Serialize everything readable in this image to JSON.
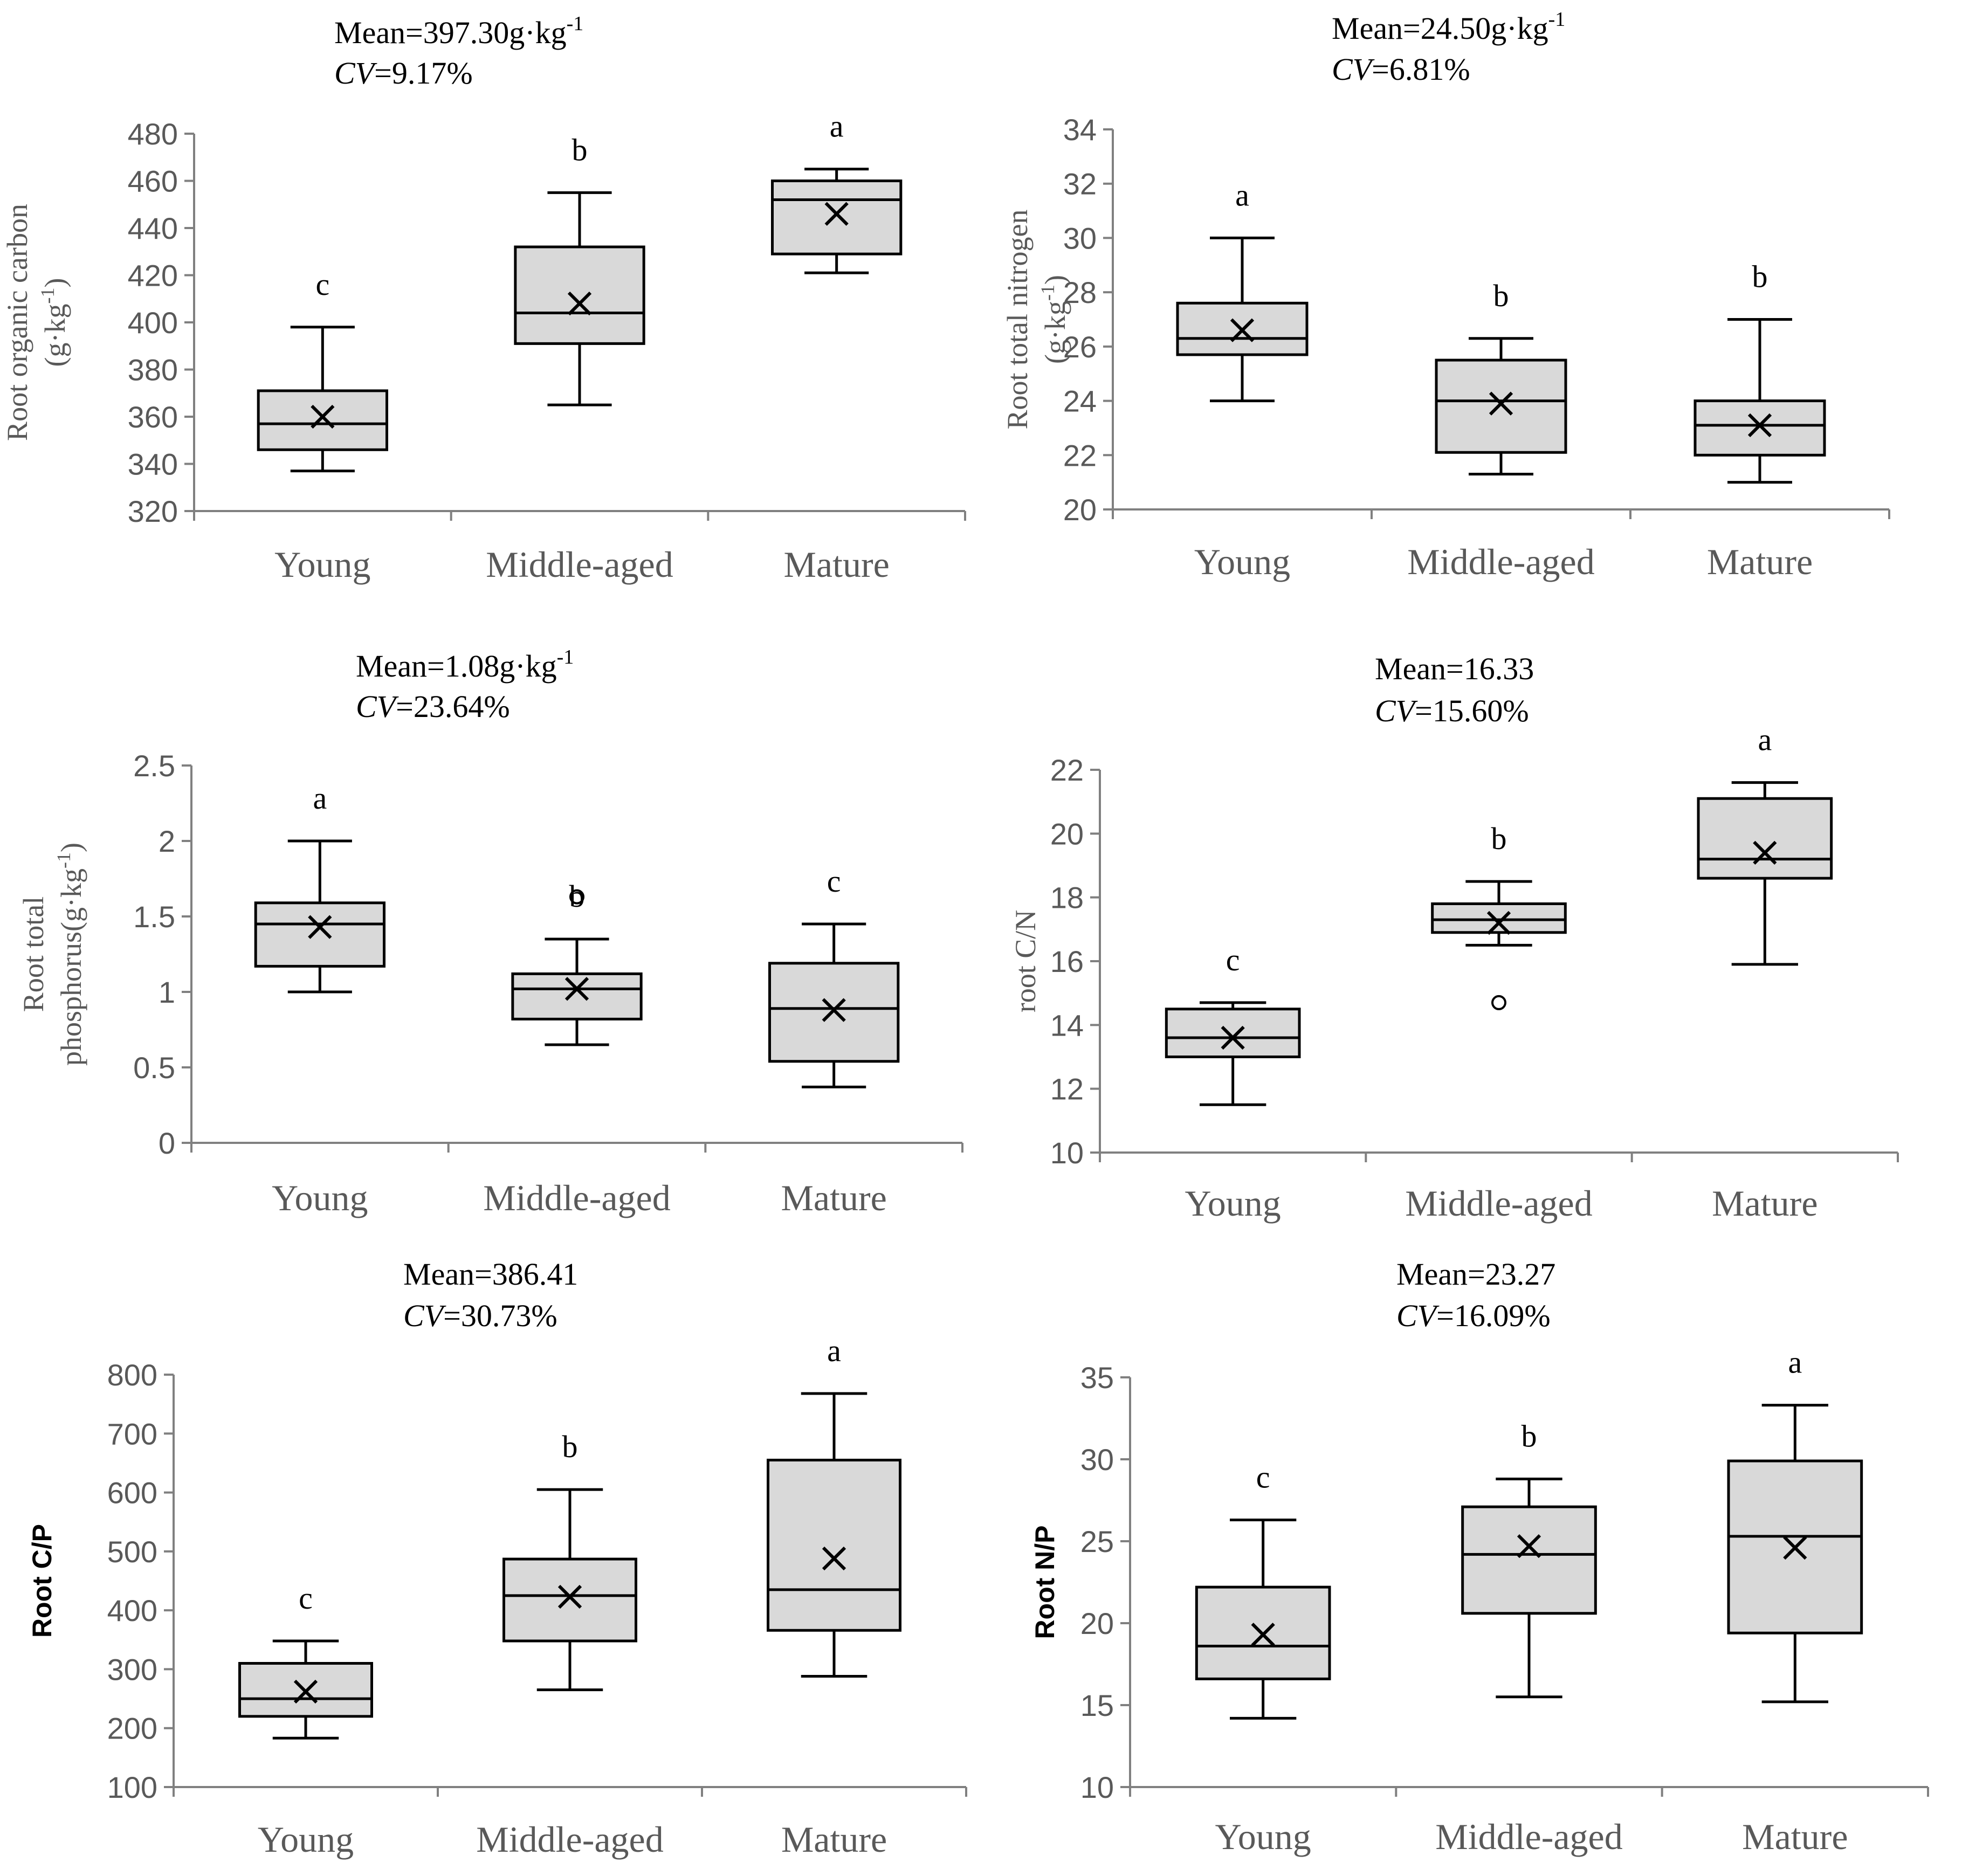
{
  "chart_data": [
    {
      "type": "boxplot",
      "stat_mean": "Mean=397.30g·kg",
      "stat_mean_sup": "-1",
      "stat_cv_label": "CV",
      "stat_cv_value": "=9.17%",
      "ylabel_line1": "Root organic  carbon",
      "ylabel_line2": "(g·kg",
      "ylabel_line2_sup": "-1",
      "ylabel_line2_end": ")",
      "ylim": [
        320,
        480
      ],
      "yticks": [
        320,
        340,
        360,
        380,
        400,
        420,
        440,
        460,
        480
      ],
      "categories": [
        "Young",
        "Middle-aged",
        "Mature"
      ],
      "boxes": [
        {
          "min": 337,
          "q1": 346,
          "median": 357,
          "q3": 371,
          "max": 398,
          "mean": 360,
          "sig": "c",
          "outliers": []
        },
        {
          "min": 365,
          "q1": 391,
          "median": 404,
          "q3": 432,
          "max": 455,
          "mean": 408,
          "sig": "b",
          "outliers": []
        },
        {
          "min": 421,
          "q1": 429,
          "median": 452,
          "q3": 460,
          "max": 465,
          "mean": 446,
          "sig": "a",
          "outliers": []
        }
      ]
    },
    {
      "type": "boxplot",
      "stat_mean": "Mean=24.50g·kg",
      "stat_mean_sup": "-1",
      "stat_cv_label": "CV",
      "stat_cv_value": "=6.81%",
      "ylabel_line1": "Root total nitrogen",
      "ylabel_line2": "(g·kg",
      "ylabel_line2_sup": "-1",
      "ylabel_line2_end": ")",
      "ylim": [
        20,
        34
      ],
      "yticks": [
        20,
        22,
        24,
        26,
        28,
        30,
        32,
        34
      ],
      "categories": [
        "Young",
        "Middle-aged",
        "Mature"
      ],
      "boxes": [
        {
          "min": 24.0,
          "q1": 25.7,
          "median": 26.3,
          "q3": 27.6,
          "max": 30.0,
          "mean": 26.6,
          "sig": "a",
          "outliers": []
        },
        {
          "min": 21.3,
          "q1": 22.1,
          "median": 24.0,
          "q3": 25.5,
          "max": 26.3,
          "mean": 23.9,
          "sig": "b",
          "outliers": []
        },
        {
          "min": 21.0,
          "q1": 22.0,
          "median": 23.1,
          "q3": 24.0,
          "max": 27.0,
          "mean": 23.1,
          "sig": "b",
          "outliers": []
        }
      ]
    },
    {
      "type": "boxplot",
      "stat_mean": "Mean=1.08g·kg",
      "stat_mean_sup": "-1",
      "stat_cv_label": "CV",
      "stat_cv_value": "=23.64%",
      "ylabel_line1": "Root total",
      "ylabel_line2": "phosphorus(g·kg",
      "ylabel_line2_sup": "-1",
      "ylabel_line2_end": ")",
      "ylim": [
        0,
        2.5
      ],
      "yticks": [
        0,
        0.5,
        1,
        1.5,
        2,
        2.5
      ],
      "categories": [
        "Young",
        "Middle-aged",
        "Mature"
      ],
      "boxes": [
        {
          "min": 1.0,
          "q1": 1.17,
          "median": 1.45,
          "q3": 1.59,
          "max": 2.0,
          "mean": 1.43,
          "sig": "a",
          "outliers": []
        },
        {
          "min": 0.65,
          "q1": 0.82,
          "median": 1.02,
          "q3": 1.12,
          "max": 1.35,
          "mean": 1.02,
          "sig": "b",
          "outliers": [
            1.63
          ]
        },
        {
          "min": 0.37,
          "q1": 0.54,
          "median": 0.89,
          "q3": 1.19,
          "max": 1.45,
          "mean": 0.88,
          "sig": "c",
          "outliers": []
        }
      ]
    },
    {
      "type": "boxplot",
      "stat_mean": "Mean=16.33",
      "stat_mean_sup": "",
      "stat_cv_label": "CV",
      "stat_cv_value": "=15.60%",
      "ylabel_line1": "root C/N",
      "ylabel_line2": "",
      "ylabel_line2_sup": "",
      "ylabel_line2_end": "",
      "ylim": [
        10,
        22
      ],
      "yticks": [
        10,
        12,
        14,
        16,
        18,
        20,
        22
      ],
      "categories": [
        "Young",
        "Middle-aged",
        "Mature"
      ],
      "boxes": [
        {
          "min": 11.5,
          "q1": 13.0,
          "median": 13.6,
          "q3": 14.5,
          "max": 14.7,
          "mean": 13.6,
          "sig": "c",
          "outliers": []
        },
        {
          "min": 16.5,
          "q1": 16.9,
          "median": 17.3,
          "q3": 17.8,
          "max": 18.5,
          "mean": 17.2,
          "sig": "b",
          "outliers": [
            14.7
          ]
        },
        {
          "min": 15.9,
          "q1": 18.6,
          "median": 19.2,
          "q3": 21.1,
          "max": 21.6,
          "mean": 19.4,
          "sig": "a",
          "outliers": []
        }
      ]
    },
    {
      "type": "boxplot",
      "stat_mean": "Mean=386.41",
      "stat_mean_sup": "",
      "stat_cv_label": "CV",
      "stat_cv_value": "=30.73%",
      "ylabel_line1": "Root C/P",
      "ylabel_line2": "",
      "ylabel_line2_sup": "",
      "ylabel_line2_end": "",
      "ylabel_dark": true,
      "ylim": [
        100,
        800
      ],
      "yticks": [
        100,
        200,
        300,
        400,
        500,
        600,
        700,
        800
      ],
      "categories": [
        "Young",
        "Middle-aged",
        "Mature"
      ],
      "boxes": [
        {
          "min": 183,
          "q1": 220,
          "median": 250,
          "q3": 310,
          "max": 348,
          "mean": 262,
          "sig": "c",
          "outliers": []
        },
        {
          "min": 265,
          "q1": 348,
          "median": 425,
          "q3": 487,
          "max": 605,
          "mean": 423,
          "sig": "b",
          "outliers": []
        },
        {
          "min": 288,
          "q1": 366,
          "median": 435,
          "q3": 655,
          "max": 768,
          "mean": 488,
          "sig": "a",
          "outliers": []
        }
      ]
    },
    {
      "type": "boxplot",
      "stat_mean": "Mean=23.27",
      "stat_mean_sup": "",
      "stat_cv_label": "CV",
      "stat_cv_value": "=16.09%",
      "ylabel_line1": "Root N/P",
      "ylabel_line2": "",
      "ylabel_line2_sup": "",
      "ylabel_line2_end": "",
      "ylabel_dark": true,
      "ylim": [
        10,
        35
      ],
      "yticks": [
        10,
        15,
        20,
        25,
        30,
        35
      ],
      "categories": [
        "Young",
        "Middle-aged",
        "Mature"
      ],
      "boxes": [
        {
          "min": 14.2,
          "q1": 16.6,
          "median": 18.6,
          "q3": 22.2,
          "max": 26.3,
          "mean": 19.3,
          "sig": "c",
          "outliers": []
        },
        {
          "min": 15.5,
          "q1": 20.6,
          "median": 24.2,
          "q3": 27.1,
          "max": 28.8,
          "mean": 24.7,
          "sig": "b",
          "outliers": []
        },
        {
          "min": 15.2,
          "q1": 19.4,
          "median": 25.3,
          "q3": 29.9,
          "max": 33.3,
          "mean": 24.6,
          "sig": "a",
          "outliers": []
        }
      ]
    }
  ]
}
